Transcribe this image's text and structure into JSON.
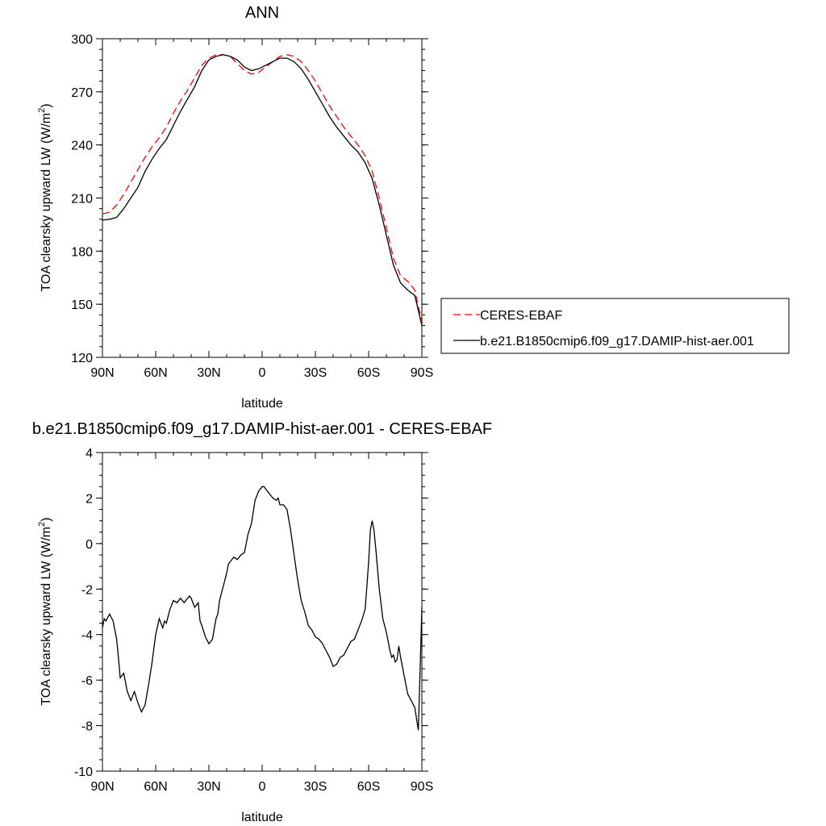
{
  "chart_data": [
    {
      "type": "line",
      "title": "ANN",
      "xlabel": "latitude",
      "ylabel_main": "TOA clearsky upward LW (W/m",
      "ylabel_sup": "2",
      "ylabel_close": ")",
      "xlim": [
        90,
        -90
      ],
      "ylim": [
        120,
        300
      ],
      "xticks": [
        90,
        60,
        30,
        0,
        -30,
        -60,
        -90
      ],
      "xtick_labels": [
        "90N",
        "60N",
        "30N",
        "0",
        "30S",
        "60S",
        "90S"
      ],
      "yticks": [
        120,
        150,
        180,
        210,
        240,
        270,
        300
      ],
      "ytick_labels": [
        "120",
        "150",
        "180",
        "210",
        "240",
        "270",
        "300"
      ],
      "legend_position": "right",
      "series": [
        {
          "name": "CERES-EBAF",
          "color": "#ff0000",
          "dash": "dashed",
          "x": [
            90,
            86,
            82,
            78,
            74,
            70,
            66,
            62,
            58,
            54,
            50,
            46,
            42,
            38,
            34,
            30,
            26,
            22,
            18,
            14,
            10,
            6,
            2,
            -2,
            -6,
            -10,
            -14,
            -18,
            -22,
            -26,
            -30,
            -34,
            -38,
            -42,
            -46,
            -50,
            -54,
            -58,
            -62,
            -66,
            -70,
            -74,
            -78,
            -82,
            -86,
            -90
          ],
          "y": [
            201,
            202,
            206,
            212,
            219,
            226,
            233,
            239,
            244,
            250,
            258,
            265,
            271,
            278,
            285,
            289,
            291,
            291,
            290,
            286,
            282,
            280,
            281,
            284,
            287,
            290,
            291,
            290,
            287,
            282,
            276,
            269,
            262,
            256,
            250,
            245,
            240,
            234,
            225,
            210,
            193,
            176,
            166,
            163,
            158,
            140
          ]
        },
        {
          "name": "b.e21.B1850cmip6.f09_g17.DAMIP-hist-aer.001",
          "color": "#000000",
          "dash": "solid",
          "x": [
            90,
            86,
            82,
            78,
            74,
            70,
            66,
            62,
            58,
            54,
            50,
            46,
            42,
            38,
            34,
            30,
            26,
            22,
            18,
            14,
            10,
            6,
            2,
            -2,
            -6,
            -10,
            -14,
            -18,
            -22,
            -26,
            -30,
            -34,
            -38,
            -42,
            -46,
            -50,
            -54,
            -58,
            -62,
            -66,
            -70,
            -74,
            -78,
            -82,
            -86,
            -90
          ],
          "y": [
            197.5,
            198,
            199,
            204,
            210,
            216,
            225,
            232,
            238,
            243,
            251,
            259,
            266,
            273,
            282,
            288,
            290,
            291,
            290,
            288,
            284,
            282,
            283,
            285,
            287,
            289,
            289,
            287,
            283,
            277,
            270,
            263,
            256,
            250,
            245,
            240,
            236,
            230,
            221,
            206,
            189,
            172,
            162,
            158,
            155,
            138
          ]
        }
      ]
    },
    {
      "type": "line",
      "title": "b.e21.B1850cmip6.f09_g17.DAMIP-hist-aer.001 - CERES-EBAF",
      "xlabel": "latitude",
      "ylabel_main": "TOA clearsky upward LW (W/m",
      "ylabel_sup": "2",
      "ylabel_close": ")",
      "xlim": [
        90,
        -90
      ],
      "ylim": [
        -10,
        4
      ],
      "xticks": [
        90,
        60,
        30,
        0,
        -30,
        -60,
        -90
      ],
      "xtick_labels": [
        "90N",
        "60N",
        "30N",
        "0",
        "30S",
        "60S",
        "90S"
      ],
      "yticks": [
        -10,
        -8,
        -6,
        -4,
        -2,
        0,
        2,
        4
      ],
      "ytick_labels": [
        "-10",
        "-8",
        "-6",
        "-4",
        "-2",
        "0",
        "2",
        "4"
      ],
      "series": [
        {
          "color": "#000000",
          "dash": "solid",
          "x": [
            90,
            89,
            88,
            86,
            84,
            82,
            81,
            80,
            79,
            78,
            76,
            74,
            73,
            72,
            70,
            68,
            66,
            64,
            62,
            61,
            60,
            58,
            56,
            55,
            54,
            52,
            50,
            48,
            46,
            44,
            42,
            41,
            40,
            38,
            36,
            35,
            34,
            32,
            30,
            28,
            26,
            25,
            24,
            22,
            20,
            19,
            18,
            16,
            14,
            12,
            10,
            8,
            6,
            4,
            2,
            1,
            0,
            -1,
            -2,
            -4,
            -6,
            -8,
            -9,
            -10,
            -12,
            -14,
            -16,
            -18,
            -20,
            -22,
            -24,
            -26,
            -28,
            -30,
            -32,
            -34,
            -36,
            -38,
            -40,
            -42,
            -44,
            -46,
            -48,
            -50,
            -52,
            -54,
            -56,
            -58,
            -59,
            -60,
            -61,
            -62,
            -63,
            -64,
            -66,
            -68,
            -70,
            -72,
            -73,
            -74,
            -75,
            -76,
            -77,
            -78,
            -80,
            -82,
            -84,
            -86,
            -88,
            -89,
            -90
          ],
          "y": [
            -3.7,
            -3.3,
            -3.4,
            -3.1,
            -3.4,
            -4.2,
            -5.0,
            -5.9,
            -5.8,
            -5.7,
            -6.5,
            -6.9,
            -6.7,
            -6.5,
            -7.0,
            -7.4,
            -7.1,
            -6.2,
            -5.2,
            -4.6,
            -4.0,
            -3.3,
            -3.7,
            -3.4,
            -3.5,
            -2.9,
            -2.5,
            -2.6,
            -2.4,
            -2.6,
            -2.4,
            -2.3,
            -2.4,
            -2.8,
            -2.6,
            -3.4,
            -3.6,
            -4.1,
            -4.4,
            -4.2,
            -3.3,
            -3.1,
            -2.5,
            -1.9,
            -1.3,
            -0.9,
            -0.8,
            -0.6,
            -0.7,
            -0.5,
            -0.4,
            0.4,
            0.9,
            1.9,
            2.3,
            2.4,
            2.5,
            2.5,
            2.4,
            2.2,
            2.0,
            1.9,
            2.0,
            1.7,
            1.7,
            1.5,
            0.6,
            -0.5,
            -1.6,
            -2.5,
            -3.0,
            -3.6,
            -3.8,
            -4.1,
            -4.2,
            -4.4,
            -4.7,
            -5.0,
            -5.4,
            -5.3,
            -5.0,
            -4.9,
            -4.6,
            -4.3,
            -4.2,
            -3.8,
            -3.4,
            -2.9,
            -1.9,
            -0.8,
            0.6,
            1.0,
            0.6,
            -0.2,
            -2.0,
            -3.3,
            -3.9,
            -4.7,
            -5.0,
            -4.9,
            -5.2,
            -5.1,
            -4.5,
            -5.0,
            -5.8,
            -6.6,
            -6.9,
            -7.2,
            -8.2,
            -5.6,
            -2.8
          ]
        }
      ]
    }
  ]
}
